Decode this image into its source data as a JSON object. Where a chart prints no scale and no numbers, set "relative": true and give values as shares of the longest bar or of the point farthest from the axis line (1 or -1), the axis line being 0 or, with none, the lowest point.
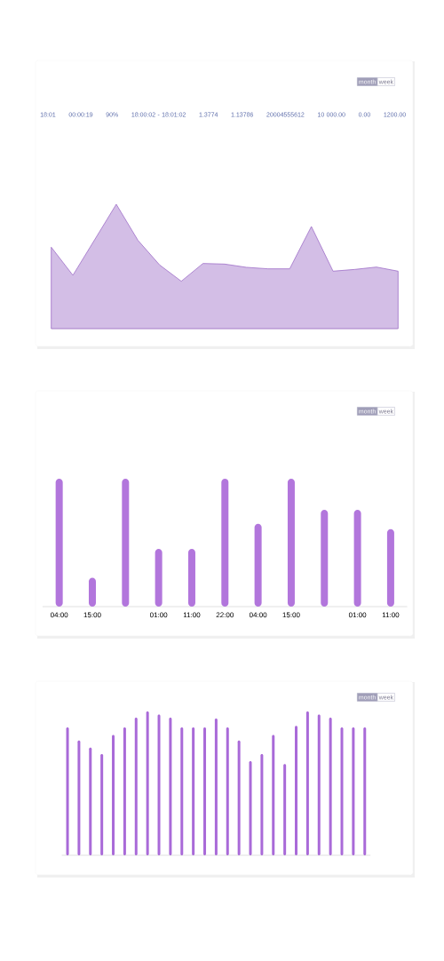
{
  "chart_data": [
    {
      "type": "area",
      "relative": true,
      "color": "#9e6fc8",
      "categories": [
        null,
        null,
        null,
        null,
        null,
        null,
        null,
        null,
        null,
        null,
        null,
        null,
        null,
        null,
        null,
        null,
        null
      ],
      "values": [
        0.655,
        0.429,
        0.714,
        1,
        0.71,
        0.512,
        0.381,
        0.524,
        0.519,
        0.493,
        0.481,
        0.481,
        0.821,
        0.462,
        0.476,
        0.495,
        0.462
      ],
      "annotations": [
        "month",
        "week",
        "18:01",
        "00:00:19",
        "90%",
        "18:00:02 - 18:01:02",
        "1.3774",
        "1.13786",
        "20004555612",
        "10 000.00",
        "0.00",
        "1200.00"
      ]
    },
    {
      "type": "bar",
      "relative": true,
      "color": "#b276dc",
      "categories": [
        "04:00",
        "15:00",
        null,
        "01:00",
        "11:00",
        "22:00",
        "04:00",
        "15:00",
        null,
        "01:00",
        "11:00"
      ],
      "values": [
        1,
        0.225,
        1,
        0.451,
        0.451,
        1,
        0.648,
        1,
        0.757,
        0.757,
        0.606
      ],
      "annotations": [
        "month",
        "week"
      ]
    },
    {
      "type": "bar",
      "relative": true,
      "color": "#a96ad8",
      "categories": [
        null,
        null,
        null,
        null,
        null,
        null,
        null,
        null,
        null,
        null,
        null,
        null,
        null,
        null,
        null,
        null,
        null,
        null,
        null,
        null,
        null,
        null,
        null,
        null,
        null,
        null,
        null
      ],
      "values": [
        0.889,
        0.798,
        0.749,
        0.704,
        0.837,
        0.889,
        0.957,
        1,
        0.979,
        0.957,
        0.889,
        0.889,
        0.889,
        0.951,
        0.889,
        0.798,
        0.654,
        0.704,
        0.837,
        0.634,
        0.899,
        1,
        0.979,
        0.957,
        0.889,
        0.889,
        0.889
      ],
      "annotations": [
        "month",
        "week"
      ]
    }
  ]
}
